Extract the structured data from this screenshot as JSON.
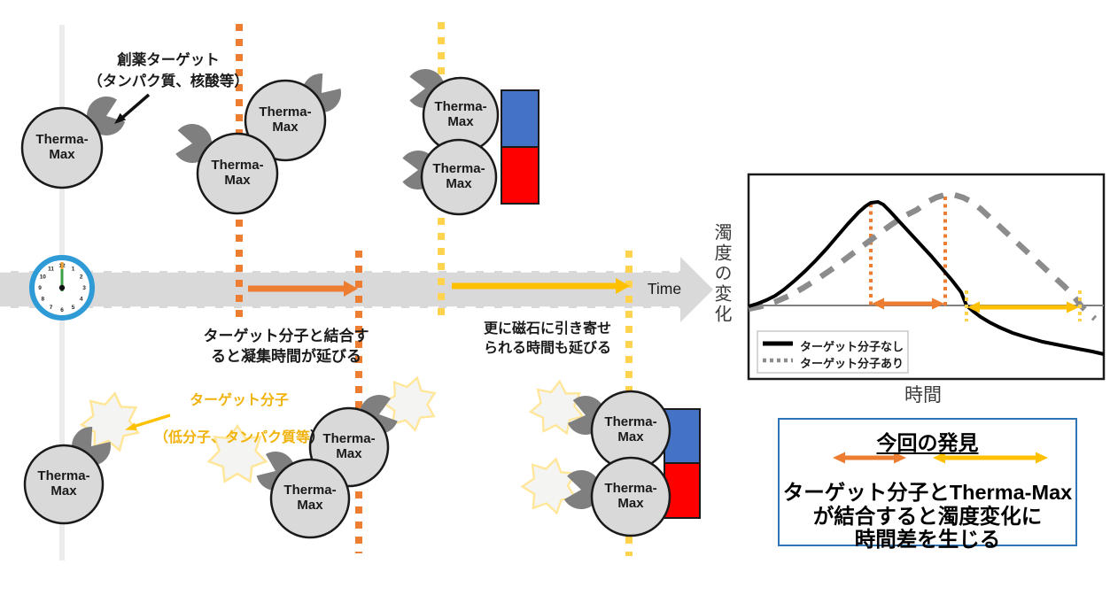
{
  "labels": {
    "drug_target": "創薬ターゲット\n（タンパク質、核酸等）",
    "molecule": "Therma-\nMax",
    "time": "Time",
    "aggregation_note": "ターゲット分子と結合す\nると凝集時間が延びる",
    "magnet_note": "更に磁石に引き寄せ\nられる時間も延びる",
    "target_molecule": {
      "line1": "ターゲット分子",
      "line2": "（低分子、タンパク質等",
      "line2_suffix": "）"
    }
  },
  "clock": {
    "numerals": [
      "12",
      "1",
      "2",
      "3",
      "4",
      "5",
      "6",
      "7",
      "8",
      "9",
      "10",
      "11"
    ]
  },
  "chart_data": {
    "type": "line",
    "title": "",
    "xlabel": "時間",
    "ylabel": "濁度の変化",
    "grid": false,
    "legend_position": "lower-left",
    "plot_size": [
      401,
      231
    ],
    "axis_y": 148,
    "series": [
      {
        "name": "ターゲット分子なし",
        "style": "solid",
        "color": "#000000",
        "points": [
          [
            0,
            149
          ],
          [
            10,
            146
          ],
          [
            20,
            142
          ],
          [
            30,
            137
          ],
          [
            40,
            130
          ],
          [
            52,
            120
          ],
          [
            64,
            109
          ],
          [
            76,
            97
          ],
          [
            88,
            84
          ],
          [
            100,
            70
          ],
          [
            112,
            56
          ],
          [
            124,
            43
          ],
          [
            132,
            36
          ],
          [
            138,
            32
          ],
          [
            146,
            31
          ],
          [
            152,
            34
          ],
          [
            160,
            42
          ],
          [
            170,
            53
          ],
          [
            182,
            66
          ],
          [
            194,
            79
          ],
          [
            206,
            92
          ],
          [
            218,
            106
          ],
          [
            230,
            120
          ],
          [
            240,
            133
          ],
          [
            246,
            148
          ],
          [
            254,
            155
          ],
          [
            262,
            161
          ],
          [
            272,
            167
          ],
          [
            284,
            173
          ],
          [
            298,
            179
          ],
          [
            314,
            184
          ],
          [
            332,
            189
          ],
          [
            352,
            193
          ],
          [
            372,
            197
          ],
          [
            388,
            200
          ],
          [
            401,
            203
          ]
        ]
      },
      {
        "name": "ターゲット分子あり",
        "style": "dashed",
        "color": "#8C8C8C",
        "points": [
          [
            0,
            152
          ],
          [
            14,
            149
          ],
          [
            30,
            144
          ],
          [
            46,
            137
          ],
          [
            62,
            128
          ],
          [
            78,
            118
          ],
          [
            94,
            107
          ],
          [
            110,
            95
          ],
          [
            126,
            83
          ],
          [
            142,
            71
          ],
          [
            158,
            59
          ],
          [
            174,
            48
          ],
          [
            190,
            40
          ],
          [
            202,
            31
          ],
          [
            212,
            26
          ],
          [
            222,
            23
          ],
          [
            232,
            23
          ],
          [
            242,
            26
          ],
          [
            252,
            31
          ],
          [
            262,
            39
          ],
          [
            274,
            50
          ],
          [
            288,
            63
          ],
          [
            302,
            76
          ],
          [
            316,
            89
          ],
          [
            330,
            102
          ],
          [
            344,
            115
          ],
          [
            356,
            126
          ],
          [
            366,
            136
          ],
          [
            375,
            148
          ],
          [
            383,
            156
          ],
          [
            391,
            163
          ]
        ]
      }
    ],
    "markers": {
      "orange_dotted_x": [
        138,
        222
      ],
      "orange_arrow_span_x": [
        140,
        220
      ],
      "yellow_dotted_x": [
        246,
        374
      ],
      "yellow_arrow_span_x": [
        248,
        372
      ]
    }
  },
  "finding_box": {
    "title": "今回の発見",
    "body": "ターゲット分子とTherma-Max\nが結合すると濁度変化に\n時間差を生じる"
  },
  "colors": {
    "orange": "#ED7D31",
    "gold": "#FFC000",
    "gold_dot": "#FFD34D",
    "gold_text": "#F2B20C",
    "gray_light": "#D9D9D9",
    "gray_mid": "#7F7F7F",
    "magnet_blue": "#4472C4",
    "magnet_red": "#FF0000",
    "clock_blue": "#2E9BD6",
    "finding_box_border": "#2E75B6"
  }
}
